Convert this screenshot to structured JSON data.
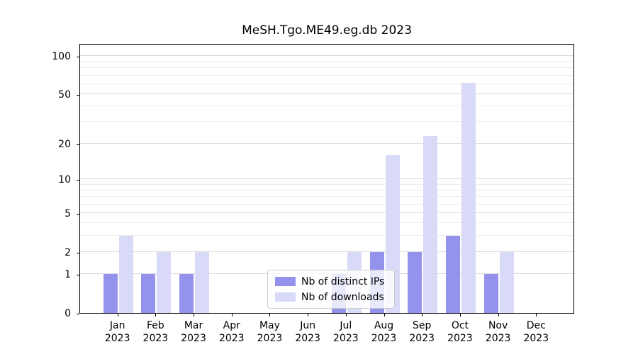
{
  "chart_data": {
    "type": "bar",
    "title": "MeSH.Tgo.ME49.eg.db 2023",
    "year": "2023",
    "categories": [
      "Jan",
      "Feb",
      "Mar",
      "Apr",
      "May",
      "Jun",
      "Jul",
      "Aug",
      "Sep",
      "Oct",
      "Nov",
      "Dec"
    ],
    "series": [
      {
        "name": "Nb of distinct IPs",
        "color": "#9393ee",
        "values": [
          1,
          1,
          1,
          0,
          0,
          0,
          1,
          2,
          2,
          3,
          1,
          0
        ]
      },
      {
        "name": "Nb of downloads",
        "color": "#d9d9f8",
        "values": [
          3,
          2,
          2,
          0,
          0,
          0,
          2,
          16,
          23,
          61,
          2,
          0
        ]
      }
    ],
    "yscale": "log1p",
    "yticks": [
      0,
      1,
      2,
      5,
      10,
      20,
      50,
      100
    ],
    "minor_yticks": [
      3,
      4,
      6,
      7,
      8,
      9,
      30,
      40,
      60,
      70,
      80,
      90
    ],
    "ylim": [
      0,
      120
    ],
    "xlabel": "",
    "ylabel": "",
    "grid": "horizontal",
    "legend_position": "lower-center-inside",
    "colors": {
      "grid_major": "#d9d9d9",
      "grid_minor": "#ededed",
      "axis": "#000000",
      "legend_border": "#cccccc",
      "background": "#ffffff"
    }
  }
}
